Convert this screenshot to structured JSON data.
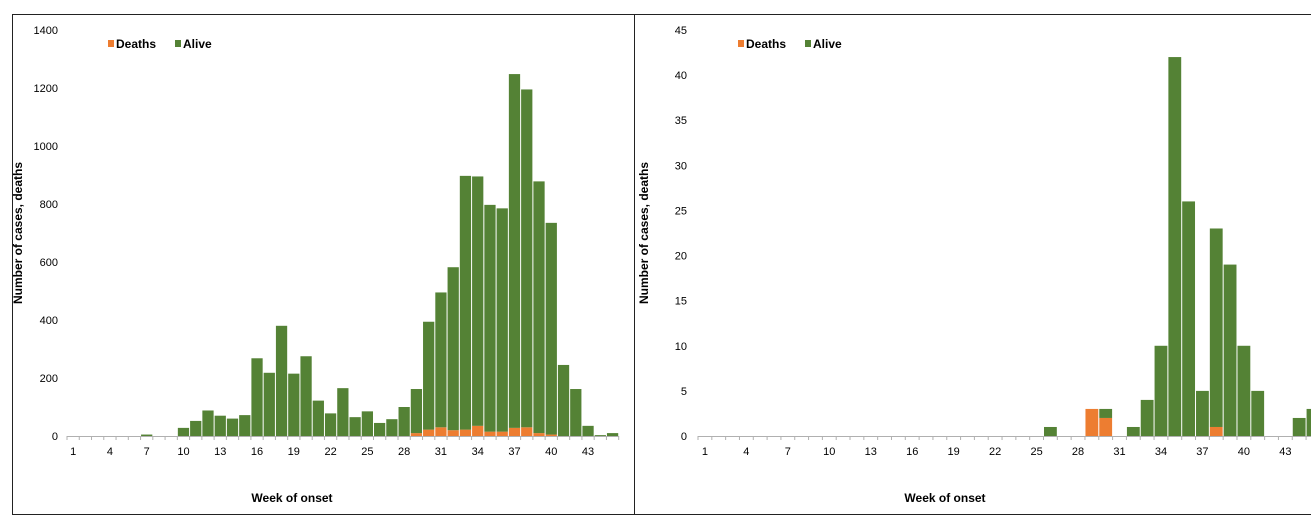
{
  "colors": {
    "deaths": "#ED7D31",
    "alive": "#548235",
    "axis": "#B0B0B0"
  },
  "chart_data": [
    {
      "type": "bar",
      "stacked": true,
      "xlabel": "Week of onset",
      "ylabel": "Number of cases, deaths",
      "ylim": [
        0,
        1400
      ],
      "yticks": [
        0,
        200,
        400,
        600,
        800,
        1000,
        1200,
        1400
      ],
      "x": [
        1,
        2,
        3,
        4,
        5,
        6,
        7,
        8,
        9,
        10,
        11,
        12,
        13,
        14,
        15,
        16,
        17,
        18,
        19,
        20,
        21,
        22,
        23,
        24,
        25,
        26,
        27,
        28,
        29,
        30,
        31,
        32,
        33,
        34,
        35,
        36,
        37,
        38,
        39,
        40,
        41,
        42,
        43,
        44,
        45
      ],
      "xtick_labels": [
        "1",
        "4",
        "7",
        "10",
        "13",
        "16",
        "19",
        "22",
        "25",
        "28",
        "31",
        "34",
        "37",
        "40",
        "43"
      ],
      "legend": [
        "Deaths",
        "Alive"
      ],
      "series": [
        {
          "name": "Deaths",
          "values": [
            0,
            0,
            0,
            0,
            0,
            0,
            0,
            0,
            0,
            0,
            0,
            0,
            0,
            0,
            0,
            0,
            0,
            0,
            0,
            0,
            0,
            0,
            0,
            0,
            0,
            0,
            0,
            0,
            10,
            22,
            30,
            20,
            22,
            35,
            15,
            15,
            28,
            30,
            10,
            5,
            0,
            0,
            0,
            0,
            0
          ]
        },
        {
          "name": "Alive",
          "values": [
            0,
            0,
            0,
            0,
            0,
            0,
            5,
            0,
            0,
            28,
            52,
            88,
            70,
            60,
            72,
            268,
            218,
            380,
            215,
            275,
            122,
            78,
            165,
            65,
            85,
            45,
            58,
            100,
            152,
            372,
            465,
            562,
            875,
            860,
            782,
            770,
            1220,
            1165,
            868,
            730,
            245,
            162,
            35,
            3,
            10
          ]
        }
      ]
    },
    {
      "type": "bar",
      "stacked": true,
      "xlabel": "Week of onset",
      "ylabel": "Number of cases, deaths",
      "ylim": [
        0,
        45
      ],
      "yticks": [
        0,
        5,
        10,
        15,
        20,
        25,
        30,
        35,
        40,
        45
      ],
      "x": [
        1,
        2,
        3,
        4,
        5,
        6,
        7,
        8,
        9,
        10,
        11,
        12,
        13,
        14,
        15,
        16,
        17,
        18,
        19,
        20,
        21,
        22,
        23,
        24,
        25,
        26,
        27,
        28,
        29,
        30,
        31,
        32,
        33,
        34,
        35,
        36,
        37,
        38,
        39,
        40,
        41,
        42,
        43,
        44,
        45
      ],
      "xtick_labels": [
        "1",
        "4",
        "7",
        "10",
        "13",
        "16",
        "19",
        "22",
        "25",
        "28",
        "31",
        "34",
        "37",
        "40",
        "43"
      ],
      "legend": [
        "Deaths",
        "Alive"
      ],
      "series": [
        {
          "name": "Deaths",
          "values": [
            0,
            0,
            0,
            0,
            0,
            0,
            0,
            0,
            0,
            0,
            0,
            0,
            0,
            0,
            0,
            0,
            0,
            0,
            0,
            0,
            0,
            0,
            0,
            0,
            0,
            0,
            0,
            0,
            3,
            2,
            0,
            0,
            0,
            0,
            0,
            0,
            0,
            1,
            0,
            0,
            0,
            0,
            0,
            0,
            0
          ]
        },
        {
          "name": "Alive",
          "values": [
            0,
            0,
            0,
            0,
            0,
            0,
            0,
            0,
            0,
            0,
            0,
            0,
            0,
            0,
            0,
            0,
            0,
            0,
            0,
            0,
            0,
            0,
            0,
            0,
            0,
            1,
            0,
            0,
            0,
            1,
            0,
            1,
            4,
            10,
            42,
            26,
            5,
            22,
            19,
            10,
            5,
            0,
            0,
            2,
            3
          ]
        }
      ]
    }
  ]
}
